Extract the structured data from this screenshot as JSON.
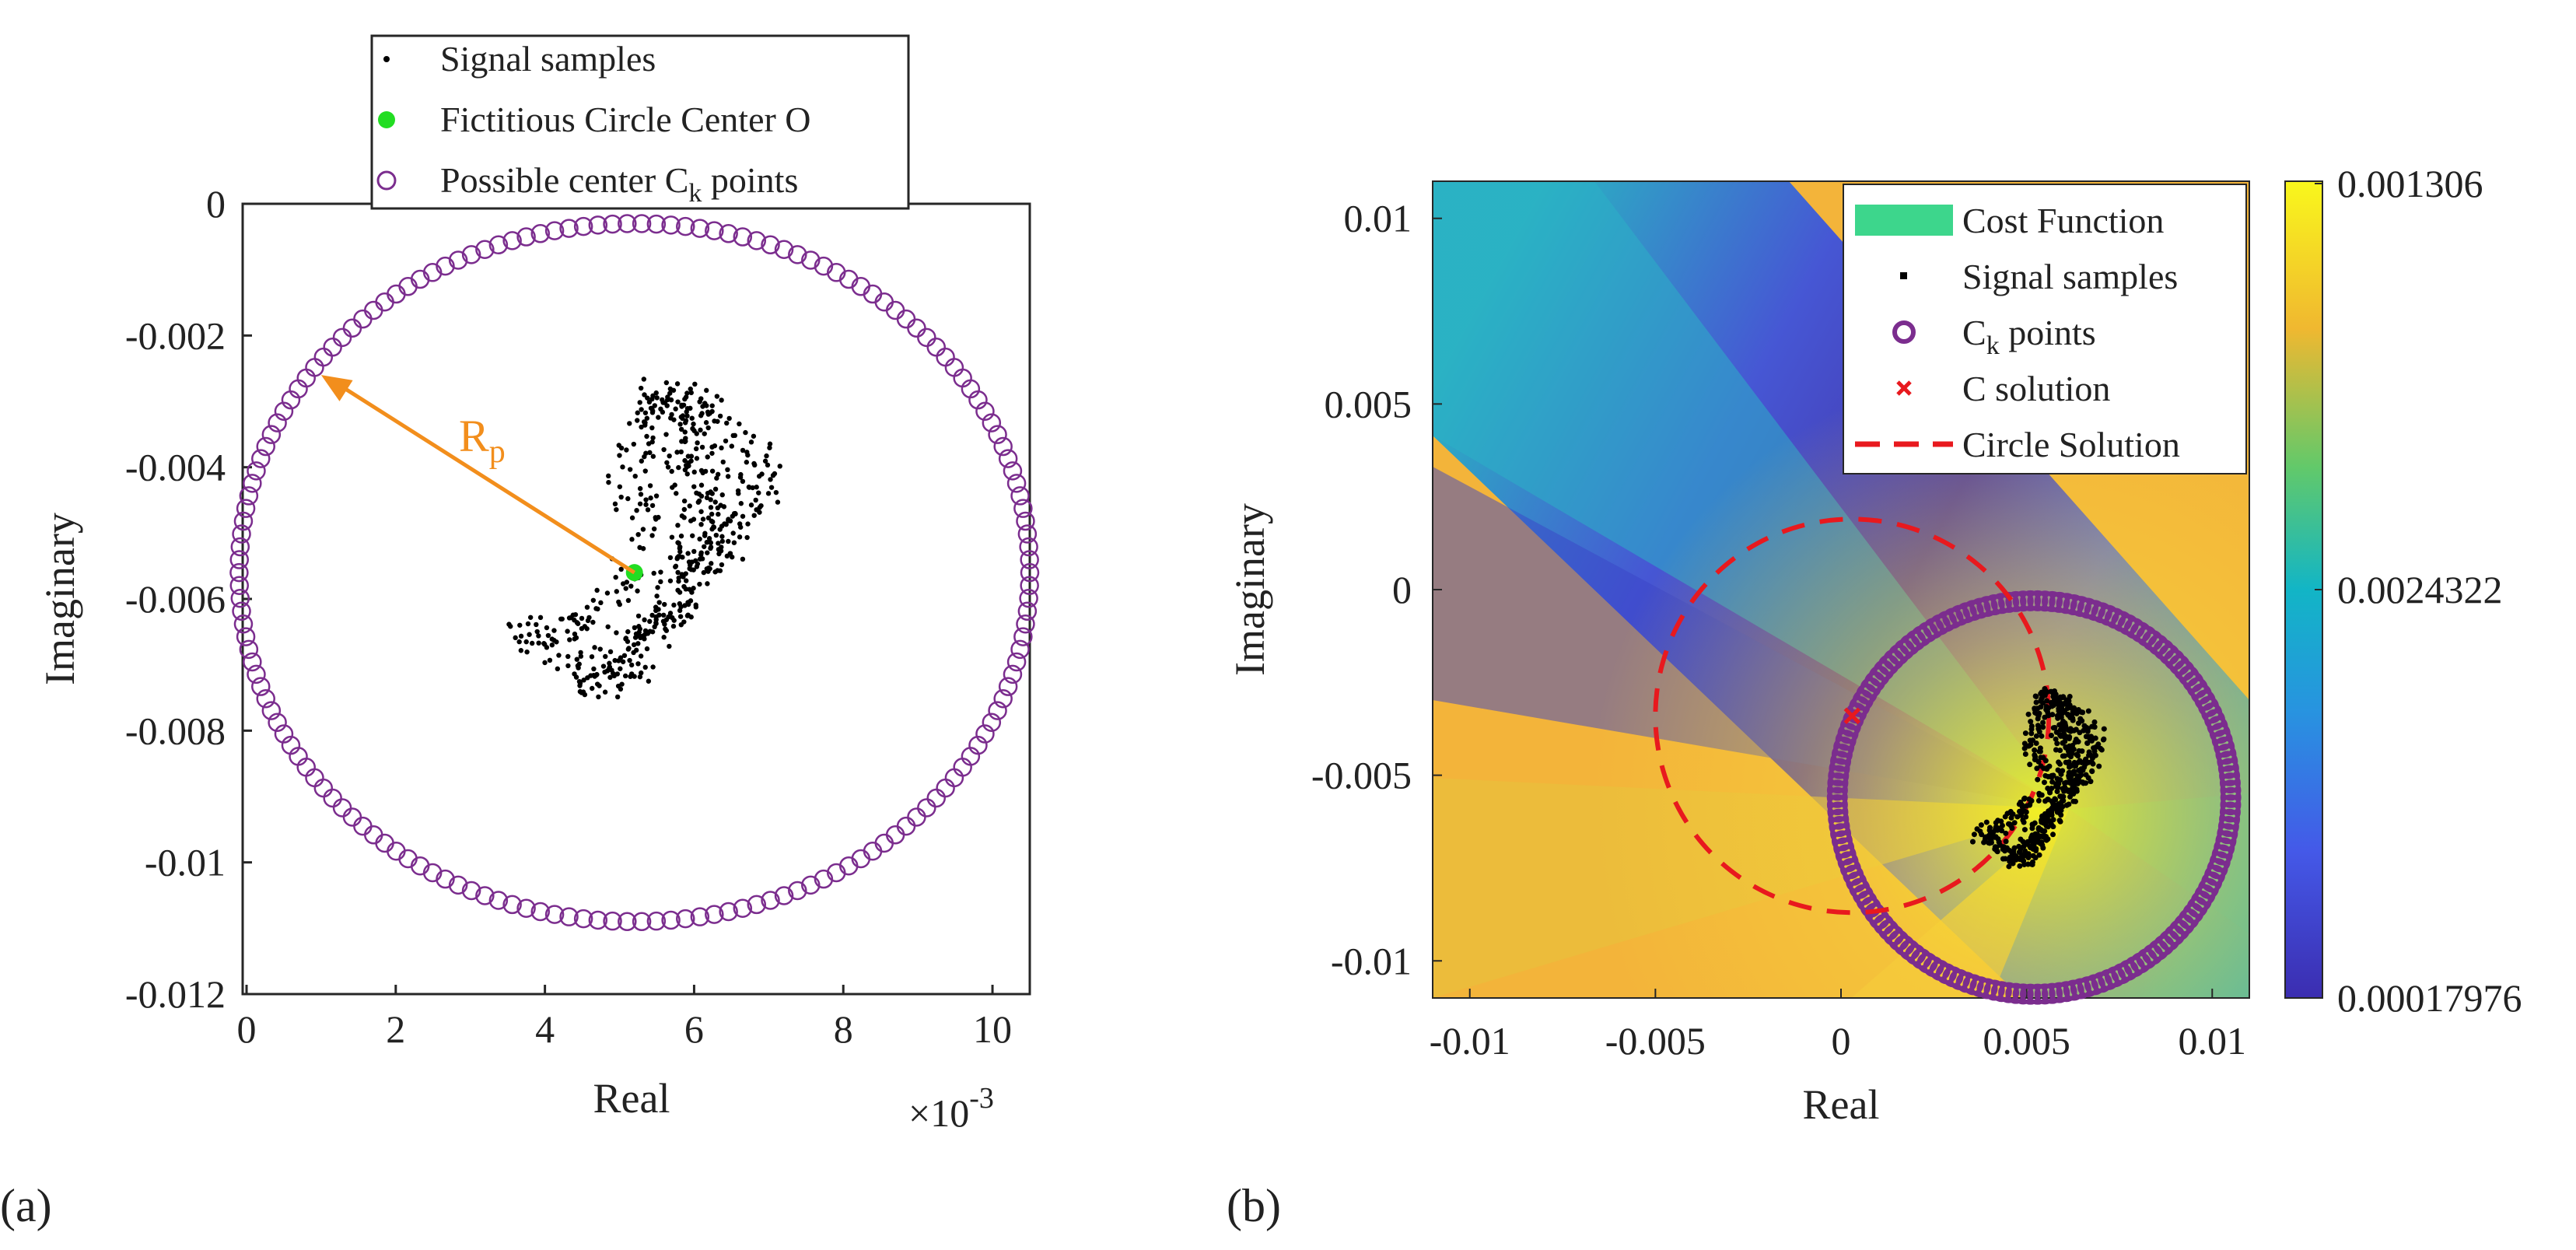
{
  "chart_data": [
    {
      "panel": "(a)",
      "type": "scatter",
      "xlabel": "Real",
      "ylabel": "Imaginary",
      "x_multiplier": "×10",
      "x_multiplier_exp": "-3",
      "xlim": [
        0,
        0.0105
      ],
      "ylim": [
        -0.012,
        0
      ],
      "xticks": [
        0,
        0.002,
        0.004,
        0.006,
        0.008,
        0.01
      ],
      "xtick_labels": [
        "0",
        "2",
        "4",
        "6",
        "8",
        "10"
      ],
      "yticks": [
        0,
        -0.002,
        -0.004,
        -0.006,
        -0.008,
        -0.01,
        -0.012
      ],
      "ytick_labels": [
        "0",
        "-0.002",
        "-0.004",
        "-0.006",
        "-0.008",
        "-0.01",
        "-0.012"
      ],
      "annotation": {
        "label": "R",
        "sub": "p",
        "from": [
          0.0052,
          -0.0056
        ],
        "to": [
          0.001,
          -0.0026
        ],
        "color": "#f28e1c"
      },
      "legend": [
        {
          "label": "Signal samples",
          "marker": "dot",
          "color": "#000000"
        },
        {
          "label": "Fictitious Circle Center O",
          "marker": "filled-circle",
          "color": "#22dd22"
        },
        {
          "label": "Possible center C",
          "sub": "k",
          "label_tail": " points",
          "marker": "open-circle",
          "color": "#7b2d8e"
        }
      ],
      "series": [
        {
          "name": "Signal samples",
          "kind": "trajectory",
          "color": "#000000",
          "path": [
            [
              0.0052,
              -0.0056
            ],
            [
              0.0049,
              -0.0059
            ],
            [
              0.0046,
              -0.0062
            ],
            [
              0.0043,
              -0.0064
            ],
            [
              0.004,
              -0.0065
            ],
            [
              0.0038,
              -0.0066
            ],
            [
              0.0041,
              -0.0068
            ],
            [
              0.0044,
              -0.007
            ],
            [
              0.0046,
              -0.0073
            ],
            [
              0.0048,
              -0.0072
            ],
            [
              0.005,
              -0.0069
            ],
            [
              0.0052,
              -0.0066
            ],
            [
              0.0054,
              -0.0064
            ],
            [
              0.0056,
              -0.0062
            ],
            [
              0.0058,
              -0.0058
            ],
            [
              0.0056,
              -0.0054
            ],
            [
              0.0055,
              -0.005
            ],
            [
              0.0053,
              -0.0046
            ],
            [
              0.0051,
              -0.0042
            ],
            [
              0.0052,
              -0.0038
            ],
            [
              0.0053,
              -0.0034
            ],
            [
              0.0054,
              -0.003
            ],
            [
              0.0056,
              -0.0028
            ],
            [
              0.0057,
              -0.0031
            ],
            [
              0.0058,
              -0.0035
            ],
            [
              0.0059,
              -0.0039
            ],
            [
              0.006,
              -0.0043
            ],
            [
              0.0061,
              -0.0047
            ],
            [
              0.006,
              -0.0051
            ],
            [
              0.0061,
              -0.0054
            ],
            [
              0.0063,
              -0.0052
            ],
            [
              0.0064,
              -0.0048
            ],
            [
              0.0063,
              -0.0044
            ],
            [
              0.0062,
              -0.004
            ],
            [
              0.0061,
              -0.0036
            ],
            [
              0.006,
              -0.0032
            ],
            [
              0.0058,
              -0.0029
            ],
            [
              0.0061,
              -0.0031
            ],
            [
              0.0065,
              -0.0034
            ],
            [
              0.0068,
              -0.0038
            ],
            [
              0.0069,
              -0.0041
            ],
            [
              0.0068,
              -0.0045
            ],
            [
              0.0066,
              -0.0048
            ],
            [
              0.0064,
              -0.0052
            ],
            [
              0.0062,
              -0.0055
            ],
            [
              0.006,
              -0.0058
            ],
            [
              0.0057,
              -0.0061
            ],
            [
              0.0055,
              -0.0064
            ],
            [
              0.0053,
              -0.0068
            ],
            [
              0.0051,
              -0.0071
            ],
            [
              0.0049,
              -0.0074
            ]
          ]
        },
        {
          "name": "Fictitious Circle Center O",
          "kind": "point",
          "color": "#22dd22",
          "x": 0.0052,
          "y": -0.0056
        },
        {
          "name": "Possible center C_k points",
          "kind": "circle-markers",
          "color": "#7b2d8e",
          "center": [
            0.0052,
            -0.0056
          ],
          "radius": 0.0053,
          "count": 170
        }
      ]
    },
    {
      "panel": "(b)",
      "type": "heatmap",
      "xlabel": "Real",
      "ylabel": "Imaginary",
      "xlim": [
        -0.011,
        0.011
      ],
      "ylim": [
        -0.011,
        0.011
      ],
      "xticks": [
        -0.01,
        -0.005,
        0,
        0.005,
        0.01
      ],
      "xtick_labels": [
        "-0.01",
        "-0.005",
        "0",
        "0.005",
        "0.01"
      ],
      "yticks": [
        0.01,
        0.005,
        0,
        -0.005,
        -0.01
      ],
      "ytick_labels": [
        "0.01",
        "0.005",
        "0",
        "-0.005",
        "-0.01"
      ],
      "colorbar": {
        "ticks": [
          "0.001306",
          "0.0024322",
          "0.00017976"
        ]
      },
      "legend": [
        {
          "label": "Cost Function",
          "marker": "patch",
          "color": "#3dd68c"
        },
        {
          "label": "Signal samples",
          "marker": "dot",
          "color": "#000000"
        },
        {
          "label": "C",
          "sub": "k",
          "label_tail": " points",
          "marker": "open-circle",
          "color": "#7b2d8e"
        },
        {
          "label": "C solution",
          "marker": "x",
          "color": "#e8191e"
        },
        {
          "label": "Circle Solution",
          "marker": "dashed-line",
          "color": "#e8191e"
        }
      ],
      "series": [
        {
          "name": "Signal samples",
          "kind": "trajectory-ref",
          "color": "#000000"
        },
        {
          "name": "C_k points",
          "kind": "circle-markers",
          "color": "#7b2d8e",
          "center": [
            0.0052,
            -0.0056
          ],
          "radius": 0.0053,
          "count": 170
        },
        {
          "name": "C solution",
          "kind": "point",
          "color": "#e8191e",
          "x": 0.0003,
          "y": -0.0034
        },
        {
          "name": "Circle Solution",
          "kind": "dashed-circle",
          "color": "#e8191e",
          "center": [
            0.0003,
            -0.0034
          ],
          "radius": 0.0053
        }
      ]
    }
  ],
  "labels": {
    "panel_a": "(a)",
    "panel_b": "(b)"
  }
}
